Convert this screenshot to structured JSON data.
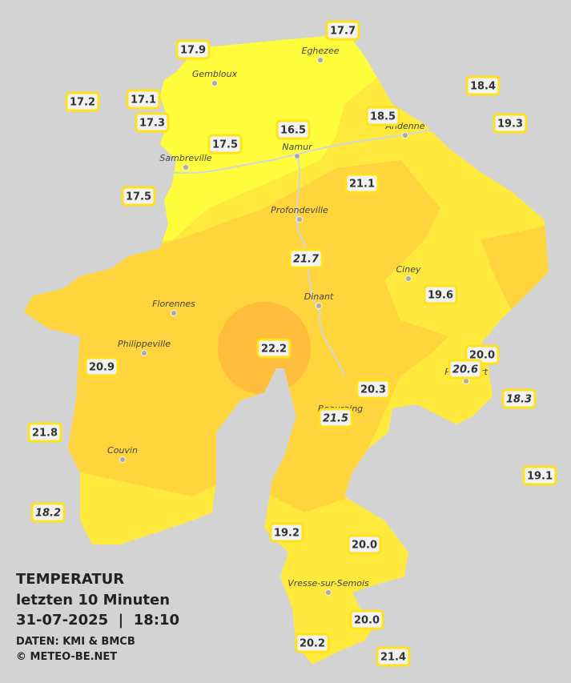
{
  "legend": {
    "title": "TEMPERATUR",
    "period": "letzten 10 Minuten",
    "datetime": "31-07-2025  |  18:10",
    "source": "DATEN: KMI & BMCB",
    "credit": "© METEO-BE.NET"
  },
  "cities": [
    "Eghezee",
    "Gembloux",
    "Andenne",
    "Namur",
    "Sambreville",
    "Profondeville",
    "Ciney",
    "Dinant",
    "Florennes",
    "Philippeville",
    "Rochefort",
    "Beauraing",
    "Couvin",
    "Vresse-sur-Semois"
  ],
  "stations": [
    {
      "label": "17.7",
      "italic": false
    },
    {
      "label": "17.9",
      "italic": false
    },
    {
      "label": "18.4",
      "italic": false
    },
    {
      "label": "17.2",
      "italic": false
    },
    {
      "label": "17.1",
      "italic": false
    },
    {
      "label": "18.5",
      "italic": false
    },
    {
      "label": "19.3",
      "italic": false
    },
    {
      "label": "17.3",
      "italic": false
    },
    {
      "label": "16.5",
      "italic": false
    },
    {
      "label": "17.5",
      "italic": false
    },
    {
      "label": "21.1",
      "italic": false
    },
    {
      "label": "17.5",
      "italic": false
    },
    {
      "label": "21.7",
      "italic": true
    },
    {
      "label": "19.6",
      "italic": false
    },
    {
      "label": "22.2",
      "italic": false
    },
    {
      "label": "20.0",
      "italic": false
    },
    {
      "label": "20.9",
      "italic": false
    },
    {
      "label": "20.6",
      "italic": true
    },
    {
      "label": "20.3",
      "italic": false
    },
    {
      "label": "18.3",
      "italic": true
    },
    {
      "label": "21.5",
      "italic": true
    },
    {
      "label": "21.8",
      "italic": false
    },
    {
      "label": "19.1",
      "italic": false
    },
    {
      "label": "18.2",
      "italic": true
    },
    {
      "label": "19.2",
      "italic": false
    },
    {
      "label": "20.0",
      "italic": false
    },
    {
      "label": "20.0",
      "italic": false
    },
    {
      "label": "20.2",
      "italic": false
    },
    {
      "label": "21.4",
      "italic": false
    }
  ]
}
